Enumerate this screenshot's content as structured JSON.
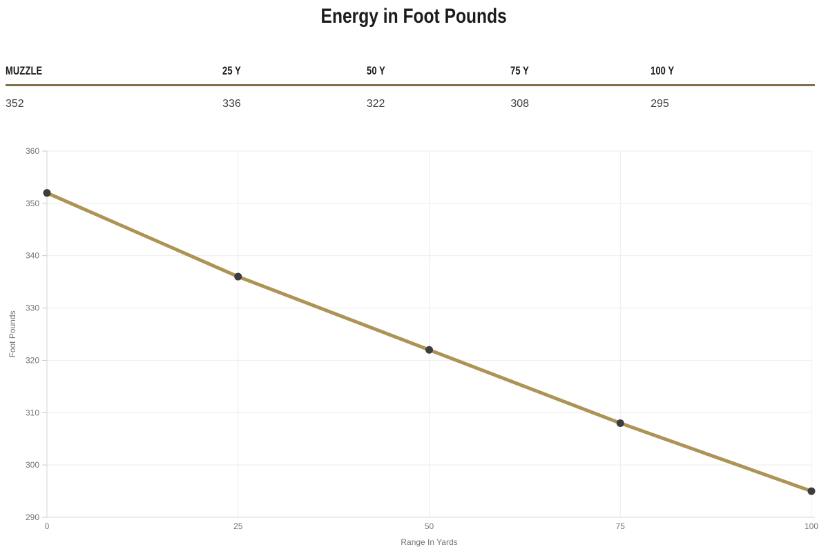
{
  "page": {
    "title": "Energy in Foot Pounds"
  },
  "table": {
    "rule_color": "#80714a",
    "columns": [
      {
        "label": "MUZZLE",
        "value": "352"
      },
      {
        "label": "25 Y",
        "value": "336"
      },
      {
        "label": "50 Y",
        "value": "322"
      },
      {
        "label": "75 Y",
        "value": "308"
      },
      {
        "label": "100 Y",
        "value": "295"
      }
    ]
  },
  "chart_data": {
    "type": "line",
    "title": "Energy in Foot Pounds",
    "x": [
      0,
      25,
      50,
      75,
      100
    ],
    "values": [
      352,
      336,
      322,
      308,
      295
    ],
    "xlabel": "Range In Yards",
    "ylabel": "Foot Pounds",
    "xlim": [
      0,
      100
    ],
    "ylim": [
      290,
      360
    ],
    "xticks": [
      0,
      25,
      50,
      75,
      100
    ],
    "yticks": [
      290,
      300,
      310,
      320,
      330,
      340,
      350,
      360
    ],
    "grid": true,
    "legend": false,
    "line_color": "#ad9455",
    "point_color": "#3d3d3d",
    "grid_color": "#ececec",
    "axis_color": "#d6d6d6",
    "tick_color": "#c9c9c9",
    "label_color": "#747474"
  }
}
